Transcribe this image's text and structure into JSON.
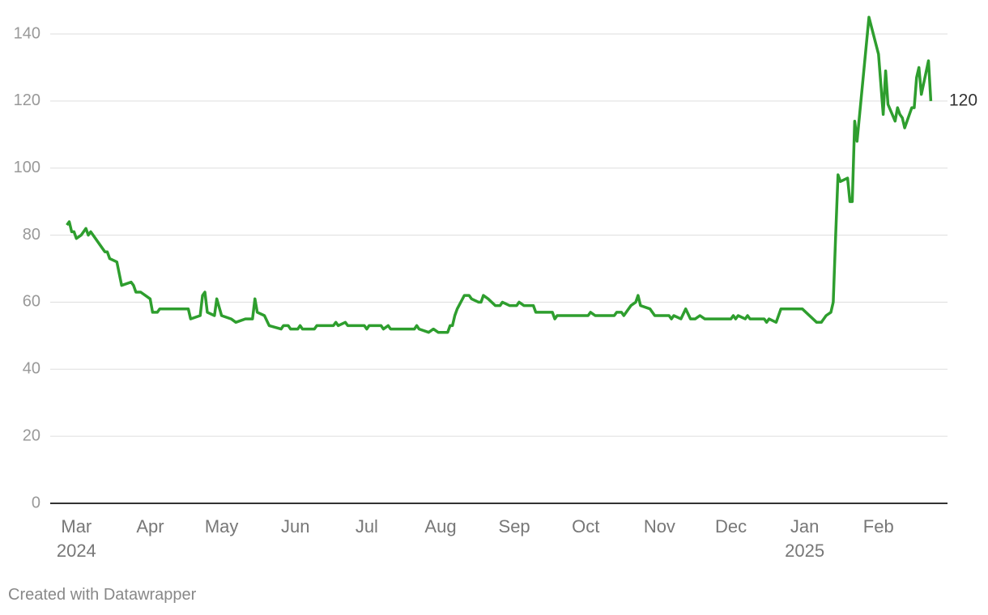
{
  "chart_data": {
    "type": "line",
    "x": [
      "2024-02-26",
      "2024-02-27",
      "2024-02-28",
      "2024-02-29",
      "2024-03-01",
      "2024-03-03",
      "2024-03-05",
      "2024-03-06",
      "2024-03-07",
      "2024-03-13",
      "2024-03-14",
      "2024-03-15",
      "2024-03-18",
      "2024-03-20",
      "2024-03-24",
      "2024-03-25",
      "2024-03-26",
      "2024-03-28",
      "2024-04-01",
      "2024-04-02",
      "2024-04-04",
      "2024-04-05",
      "2024-04-17",
      "2024-04-18",
      "2024-04-22",
      "2024-04-23",
      "2024-04-24",
      "2024-04-25",
      "2024-04-28",
      "2024-04-29",
      "2024-05-01",
      "2024-05-05",
      "2024-05-07",
      "2024-05-11",
      "2024-05-14",
      "2024-05-15",
      "2024-05-16",
      "2024-05-19",
      "2024-05-21",
      "2024-05-26",
      "2024-05-27",
      "2024-05-29",
      "2024-05-30",
      "2024-06-02",
      "2024-06-03",
      "2024-06-04",
      "2024-06-09",
      "2024-06-10",
      "2024-06-17",
      "2024-06-18",
      "2024-06-19",
      "2024-06-22",
      "2024-06-23",
      "2024-06-30",
      "2024-07-01",
      "2024-07-02",
      "2024-07-07",
      "2024-07-08",
      "2024-07-10",
      "2024-07-11",
      "2024-07-21",
      "2024-07-22",
      "2024-07-23",
      "2024-07-27",
      "2024-07-29",
      "2024-07-31",
      "2024-08-04",
      "2024-08-05",
      "2024-08-06",
      "2024-08-07",
      "2024-08-08",
      "2024-08-11",
      "2024-08-13",
      "2024-08-14",
      "2024-08-17",
      "2024-08-18",
      "2024-08-19",
      "2024-08-21",
      "2024-08-24",
      "2024-08-26",
      "2024-08-27",
      "2024-08-30",
      "2024-09-02",
      "2024-09-03",
      "2024-09-05",
      "2024-09-09",
      "2024-09-10",
      "2024-09-17",
      "2024-09-18",
      "2024-09-19",
      "2024-10-02",
      "2024-10-03",
      "2024-10-05",
      "2024-10-13",
      "2024-10-14",
      "2024-10-16",
      "2024-10-17",
      "2024-10-20",
      "2024-10-22",
      "2024-10-23",
      "2024-10-24",
      "2024-10-28",
      "2024-10-30",
      "2024-11-05",
      "2024-11-06",
      "2024-11-07",
      "2024-11-10",
      "2024-11-12",
      "2024-11-14",
      "2024-11-16",
      "2024-11-18",
      "2024-11-20",
      "2024-12-01",
      "2024-12-02",
      "2024-12-03",
      "2024-12-04",
      "2024-12-07",
      "2024-12-08",
      "2024-12-09",
      "2024-12-15",
      "2024-12-16",
      "2024-12-17",
      "2024-12-20",
      "2024-12-22",
      "2024-12-31",
      "2025-01-06",
      "2025-01-08",
      "2025-01-10",
      "2025-01-12",
      "2025-01-13",
      "2025-01-14",
      "2025-01-15",
      "2025-01-16",
      "2025-01-19",
      "2025-01-20",
      "2025-01-21",
      "2025-01-22",
      "2025-01-23",
      "2025-01-28",
      "2025-02-01",
      "2025-02-03",
      "2025-02-04",
      "2025-02-05",
      "2025-02-08",
      "2025-02-09",
      "2025-02-10",
      "2025-02-11",
      "2025-02-12",
      "2025-02-15",
      "2025-02-16",
      "2025-02-17",
      "2025-02-18",
      "2025-02-19",
      "2025-02-22",
      "2025-02-23"
    ],
    "values": [
      83,
      84,
      81,
      81,
      79,
      80,
      82,
      80,
      81,
      75,
      75,
      73,
      72,
      65,
      66,
      65,
      63,
      63,
      61,
      57,
      57,
      58,
      58,
      55,
      56,
      62,
      63,
      57,
      56,
      61,
      56,
      55,
      54,
      55,
      55,
      61,
      57,
      56,
      53,
      52,
      53,
      53,
      52,
      52,
      53,
      52,
      52,
      53,
      53,
      54,
      53,
      54,
      53,
      53,
      52,
      53,
      53,
      52,
      53,
      52,
      52,
      53,
      52,
      51,
      52,
      51,
      51,
      53,
      53,
      56,
      58,
      62,
      62,
      61,
      60,
      60,
      62,
      61,
      59,
      59,
      60,
      59,
      59,
      60,
      59,
      59,
      57,
      57,
      55,
      56,
      56,
      57,
      56,
      56,
      57,
      57,
      56,
      59,
      60,
      62,
      59,
      58,
      56,
      56,
      55,
      56,
      55,
      58,
      55,
      55,
      56,
      55,
      55,
      56,
      55,
      56,
      55,
      56,
      55,
      55,
      54,
      55,
      54,
      58,
      58,
      54,
      54,
      56,
      57,
      60,
      80,
      98,
      96,
      97,
      90,
      90,
      114,
      108,
      145,
      134,
      116,
      129,
      119,
      114,
      118,
      116,
      115,
      112,
      118,
      118,
      127,
      130,
      122,
      132,
      120
    ],
    "color": "#2e9e2e",
    "xlim": [
      "2024-02-19",
      "2025-03-02"
    ],
    "xticks": [
      {
        "value": "2024-03-01",
        "label": "Mar\n2024"
      },
      {
        "value": "2024-04-01",
        "label": "Apr"
      },
      {
        "value": "2024-05-01",
        "label": "May"
      },
      {
        "value": "2024-06-01",
        "label": "Jun"
      },
      {
        "value": "2024-07-01",
        "label": "Jul"
      },
      {
        "value": "2024-08-01",
        "label": "Aug"
      },
      {
        "value": "2024-09-01",
        "label": "Sep"
      },
      {
        "value": "2024-10-01",
        "label": "Oct"
      },
      {
        "value": "2024-11-01",
        "label": "Nov"
      },
      {
        "value": "2024-12-01",
        "label": "Dec"
      },
      {
        "value": "2025-01-01",
        "label": "Jan\n2025"
      },
      {
        "value": "2025-02-01",
        "label": "Feb"
      }
    ],
    "ylim": [
      0,
      140
    ],
    "yticks": [
      0,
      20,
      40,
      60,
      80,
      100,
      120,
      140
    ],
    "grid": true,
    "credit": "Created with Datawrapper"
  }
}
